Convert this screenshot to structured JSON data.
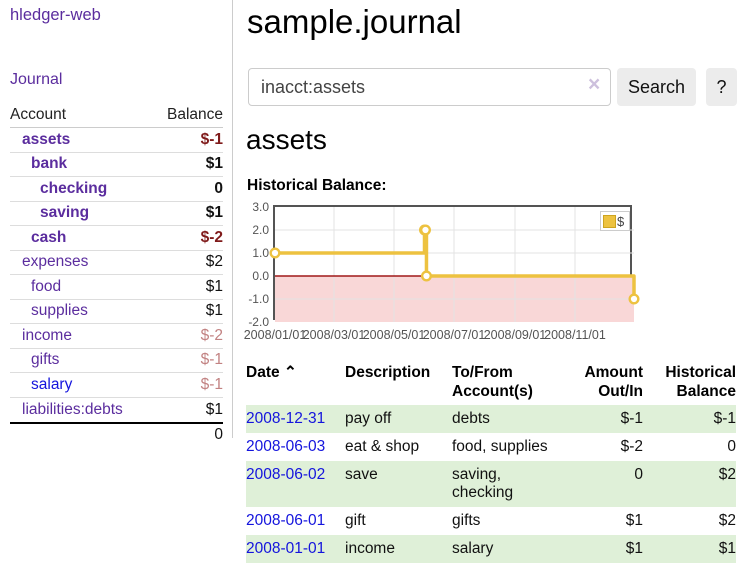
{
  "app": {
    "brand": "hledger-web",
    "nav_journal": "Journal"
  },
  "sidebar": {
    "headers": {
      "account": "Account",
      "balance": "Balance"
    },
    "rows": [
      {
        "name": "assets",
        "balance": "$-1",
        "indent": 0,
        "bold": true,
        "link_color": "purple"
      },
      {
        "name": "bank",
        "balance": "$1",
        "indent": 1,
        "bold": true,
        "link_color": "purple"
      },
      {
        "name": "checking",
        "balance": "0",
        "indent": 2,
        "bold": true,
        "link_color": "purple"
      },
      {
        "name": "saving",
        "balance": "$1",
        "indent": 2,
        "bold": true,
        "link_color": "purple"
      },
      {
        "name": "cash",
        "balance": "$-2",
        "indent": 1,
        "bold": true,
        "link_color": "purple"
      },
      {
        "name": "expenses",
        "balance": "$2",
        "indent": 0,
        "bold": false,
        "link_color": "purple"
      },
      {
        "name": "food",
        "balance": "$1",
        "indent": 1,
        "bold": false,
        "link_color": "purple"
      },
      {
        "name": "supplies",
        "balance": "$1",
        "indent": 1,
        "bold": false,
        "link_color": "purple"
      },
      {
        "name": "income",
        "balance": "$-2",
        "indent": 0,
        "bold": false,
        "link_color": "purple"
      },
      {
        "name": "gifts",
        "balance": "$-1",
        "indent": 1,
        "bold": false,
        "link_color": "purple"
      },
      {
        "name": "salary",
        "balance": "$-1",
        "indent": 1,
        "bold": false,
        "link_color": "blue"
      },
      {
        "name": "liabilities:debts",
        "balance": "$1",
        "indent": 0,
        "bold": false,
        "link_color": "purple"
      }
    ],
    "total": "0"
  },
  "main": {
    "title": "sample.journal",
    "search": {
      "value": "inacct:assets",
      "clear_icon": "×",
      "button": "Search",
      "help_button": "?"
    },
    "section_title": "assets",
    "chart_label": "Historical Balance:"
  },
  "chart_data": {
    "type": "line",
    "title": "Historical Balance",
    "step": true,
    "series": [
      {
        "name": "$",
        "points": [
          [
            "2008-01-01",
            1
          ],
          [
            "2008-06-01",
            2
          ],
          [
            "2008-06-02",
            2
          ],
          [
            "2008-06-03",
            0
          ],
          [
            "2008-12-31",
            -1
          ]
        ]
      }
    ],
    "x_range": [
      "2008-01-01",
      "2008-12-31"
    ],
    "ylim": [
      -2,
      3
    ],
    "yticks": [
      3.0,
      2.0,
      1.0,
      0.0,
      -1.0,
      -2.0
    ],
    "xticks": [
      "2008/01/01",
      "2008/03/01",
      "2008/05/01",
      "2008/07/01",
      "2008/09/01",
      "2008/11/01"
    ],
    "legend": "$",
    "legend_position": "top-right",
    "grid": true,
    "negative_region_shaded": true
  },
  "register": {
    "columns": [
      {
        "label": "Date",
        "icon": "⌃",
        "align": "left"
      },
      {
        "label": "Description",
        "align": "left"
      },
      {
        "label": "To/From\nAccount(s)",
        "align": "left"
      },
      {
        "label": "Amount\nOut/In",
        "align": "right"
      },
      {
        "label": "Historical\nBalance",
        "align": "right"
      }
    ],
    "rows": [
      {
        "date": "2008-12-31",
        "description": "pay off",
        "accounts": "debts",
        "amount": "$-1",
        "balance": "$-1"
      },
      {
        "date": "2008-06-03",
        "description": "eat & shop",
        "accounts": "food, supplies",
        "amount": "$-2",
        "balance": "0"
      },
      {
        "date": "2008-06-02",
        "description": "save",
        "accounts": "saving,\nchecking",
        "amount": "0",
        "balance": "$2"
      },
      {
        "date": "2008-06-01",
        "description": "gift",
        "accounts": "gifts",
        "amount": "$1",
        "balance": "$2"
      },
      {
        "date": "2008-01-01",
        "description": "income",
        "accounts": "salary",
        "amount": "$1",
        "balance": "$1"
      }
    ]
  },
  "colors": {
    "link_purple": "#5b2d9e",
    "link_blue": "#1414dd",
    "negative_dark": "#7f1a1a",
    "negative_muted": "#c28282",
    "table_negative": "#8f1f1f",
    "row_green": "#dff0d8",
    "chart_line": "#edc240",
    "chart_negative_region": "#f9d7d7",
    "chart_zero_line": "#a01818",
    "chart_border": "#545454",
    "gridline": "#e3e3e3",
    "button_bg": "#ececec"
  }
}
